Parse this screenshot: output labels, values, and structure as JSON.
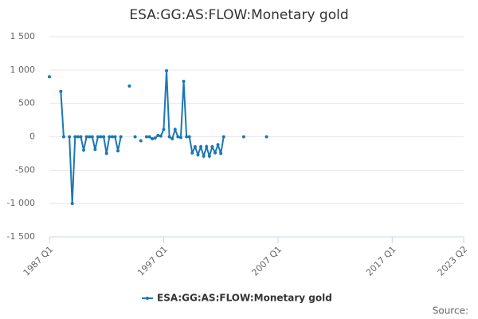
{
  "chart_data": {
    "type": "line",
    "title": "ESA:GG:AS:FLOW:Monetary gold",
    "x": [
      "1987 Q1",
      "1987 Q2",
      "1988 Q1",
      "1988 Q2",
      "1988 Q3",
      "1988 Q4",
      "1989 Q1",
      "1989 Q2",
      "1989 Q3",
      "1989 Q4",
      "1990 Q1",
      "1990 Q2",
      "1990 Q3",
      "1990 Q4",
      "1991 Q1",
      "1991 Q2",
      "1991 Q3",
      "1991 Q4",
      "1992 Q1",
      "1992 Q2",
      "1992 Q3",
      "1992 Q4",
      "1993 Q1",
      "1993 Q2",
      "1993 Q3",
      "1994 Q1",
      "1994 Q2",
      "1994 Q3",
      "1994 Q4",
      "1995 Q1",
      "1995 Q2",
      "1995 Q3",
      "1995 Q4",
      "1996 Q1",
      "1996 Q2",
      "1996 Q3",
      "1996 Q4",
      "1997 Q1",
      "1997 Q2",
      "1997 Q3",
      "1997 Q4",
      "1998 Q1",
      "1998 Q2",
      "1998 Q3",
      "1998 Q4",
      "1999 Q1",
      "1999 Q2",
      "1999 Q3",
      "1999 Q4",
      "2000 Q1",
      "2000 Q2",
      "2000 Q3",
      "2000 Q4",
      "2001 Q1",
      "2001 Q2",
      "2001 Q3",
      "2001 Q4",
      "2002 Q1",
      "2002 Q2",
      "2002 Q3",
      "2004 Q1",
      "2004 Q2",
      "2006 Q1"
    ],
    "series": [
      {
        "name": "ESA:GG:AS:FLOW:Monetary gold",
        "color": "#1a78b4",
        "values": [
          900,
          null,
          680,
          0,
          null,
          0,
          -1000,
          0,
          0,
          0,
          -200,
          0,
          0,
          0,
          -190,
          0,
          0,
          0,
          -250,
          0,
          0,
          0,
          -210,
          0,
          null,
          760,
          null,
          0,
          null,
          -60,
          null,
          0,
          0,
          -30,
          -20,
          20,
          10,
          110,
          990,
          0,
          -30,
          110,
          0,
          -10,
          830,
          0,
          0,
          -240,
          -150,
          -270,
          -150,
          -290,
          -150,
          -290,
          -150,
          -240,
          -120,
          -250,
          0,
          null,
          0,
          null,
          0
        ]
      }
    ],
    "xlim": [
      "1987 Q1",
      "2023 Q2"
    ],
    "xticks": [
      "1987 Q1",
      "1997 Q1",
      "2007 Q1",
      "2017 Q1",
      "2023 Q2"
    ],
    "ylim": [
      -1500,
      1500
    ],
    "yticks": [
      {
        "value": -1500,
        "label": "-1 500"
      },
      {
        "value": -1000,
        "label": "-1 000"
      },
      {
        "value": -500,
        "label": "-500"
      },
      0,
      500,
      {
        "value": 1000,
        "label": "1 000"
      },
      {
        "value": 1500,
        "label": "1 500"
      }
    ],
    "grid": true,
    "legend": "bottom",
    "source_label": "Source:"
  }
}
